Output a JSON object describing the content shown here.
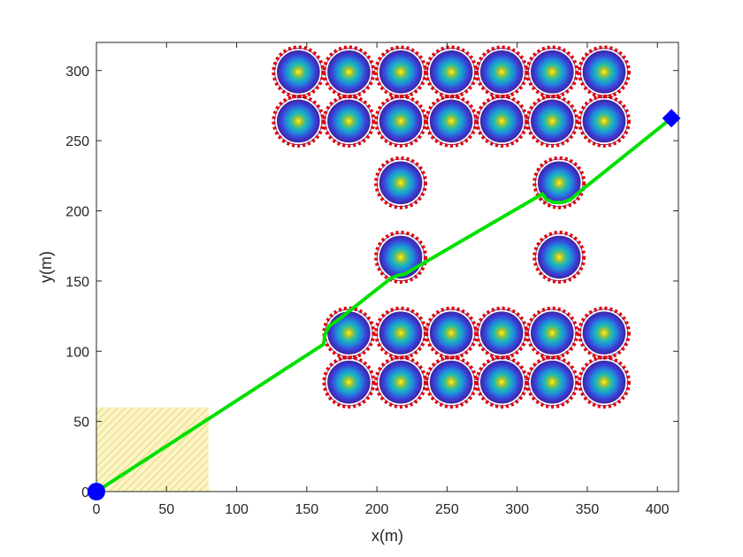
{
  "chart_data": {
    "type": "scatter",
    "title": "",
    "xlabel": "x(m)",
    "ylabel": "y(m)",
    "xlim": [
      0,
      415
    ],
    "ylim": [
      0,
      320
    ],
    "xticks": [
      0,
      50,
      100,
      150,
      200,
      250,
      300,
      350,
      400
    ],
    "yticks": [
      0,
      50,
      100,
      150,
      200,
      250,
      300
    ],
    "grid": false,
    "legend": "none",
    "start": {
      "x": 0,
      "y": 0,
      "marker": "circle",
      "color": "#0000ff"
    },
    "goal": {
      "x": 410,
      "y": 266,
      "marker": "diamond",
      "color": "#0000ff"
    },
    "start_region": {
      "x": [
        0,
        80
      ],
      "y": [
        0,
        60
      ],
      "color": "#e6d23c"
    },
    "obstacle_radius": 15,
    "obstacle_margin_radius": 17,
    "obstacles": [
      {
        "x": 144,
        "y": 299
      },
      {
        "x": 180,
        "y": 299
      },
      {
        "x": 217,
        "y": 299
      },
      {
        "x": 253,
        "y": 299
      },
      {
        "x": 289,
        "y": 299
      },
      {
        "x": 325,
        "y": 299
      },
      {
        "x": 362,
        "y": 299
      },
      {
        "x": 144,
        "y": 264
      },
      {
        "x": 180,
        "y": 264
      },
      {
        "x": 217,
        "y": 264
      },
      {
        "x": 253,
        "y": 264
      },
      {
        "x": 289,
        "y": 264
      },
      {
        "x": 325,
        "y": 264
      },
      {
        "x": 362,
        "y": 264
      },
      {
        "x": 217,
        "y": 220
      },
      {
        "x": 330,
        "y": 220
      },
      {
        "x": 217,
        "y": 167
      },
      {
        "x": 330,
        "y": 167
      },
      {
        "x": 180,
        "y": 113
      },
      {
        "x": 217,
        "y": 113
      },
      {
        "x": 253,
        "y": 113
      },
      {
        "x": 289,
        "y": 113
      },
      {
        "x": 325,
        "y": 113
      },
      {
        "x": 362,
        "y": 113
      },
      {
        "x": 180,
        "y": 78
      },
      {
        "x": 217,
        "y": 78
      },
      {
        "x": 253,
        "y": 78
      },
      {
        "x": 289,
        "y": 78
      },
      {
        "x": 325,
        "y": 78
      },
      {
        "x": 362,
        "y": 78
      }
    ],
    "series": [
      {
        "color": "#00e000",
        "x": [
          0,
          162,
          163,
          166,
          172,
          210,
          215,
          220,
          225,
          318,
          321,
          326,
          332,
          338,
          345,
          410
        ],
        "y": [
          0,
          105,
          112,
          118,
          122,
          152,
          154,
          155,
          158,
          212,
          208,
          206,
          206,
          208,
          214,
          266
        ]
      }
    ]
  }
}
